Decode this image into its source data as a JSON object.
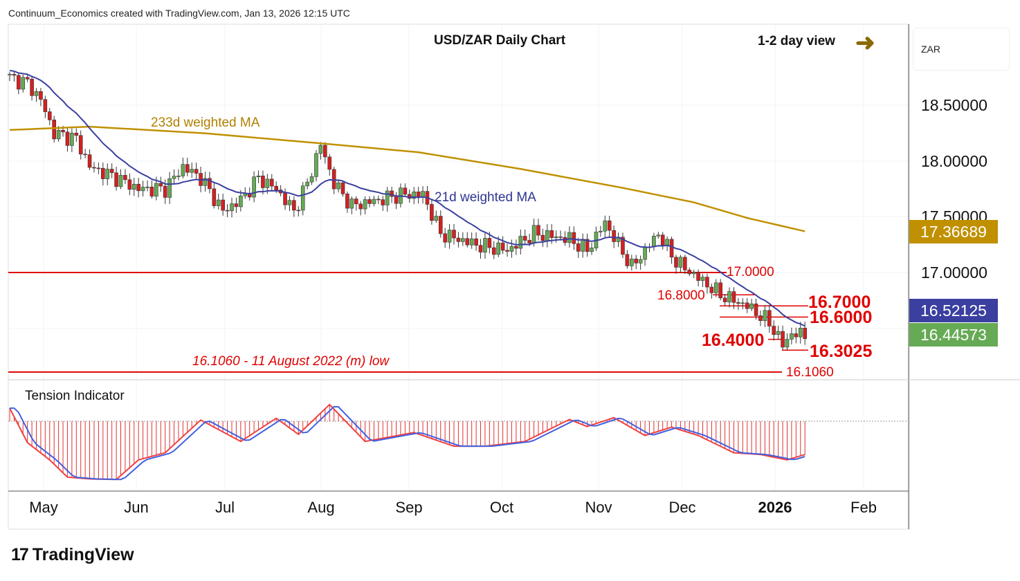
{
  "header": {
    "credit": "Continuum_Economics created with TradingView.com, Jan 13, 2026 12:15 UTC"
  },
  "chart_data": {
    "type": "candlestick",
    "title": "USD/ZAR Daily Chart",
    "view": "1-2 day view",
    "currency": "ZAR",
    "y_ticks": [
      "18.50000",
      "18.00000",
      "17.50000",
      "17.00000"
    ],
    "x_ticks": [
      "May",
      "Jun",
      "Jul",
      "Aug",
      "Sep",
      "Oct",
      "Nov",
      "Dec",
      "2026",
      "Feb"
    ],
    "price_anchors": [
      [
        0,
        18.75
      ],
      [
        4,
        18.7
      ],
      [
        7,
        18.55
      ],
      [
        10,
        18.25
      ],
      [
        15,
        18.2
      ],
      [
        18,
        17.95
      ],
      [
        24,
        17.85
      ],
      [
        29,
        17.75
      ],
      [
        35,
        17.75
      ],
      [
        39,
        17.95
      ],
      [
        43,
        17.85
      ],
      [
        48,
        17.55
      ],
      [
        52,
        17.65
      ],
      [
        56,
        17.85
      ],
      [
        60,
        17.75
      ],
      [
        64,
        17.55
      ],
      [
        67,
        17.8
      ],
      [
        70,
        18.15
      ],
      [
        73,
        17.8
      ],
      [
        77,
        17.6
      ],
      [
        83,
        17.65
      ],
      [
        88,
        17.7
      ],
      [
        93,
        17.7
      ],
      [
        97,
        17.35
      ],
      [
        105,
        17.25
      ],
      [
        112,
        17.2
      ],
      [
        118,
        17.35
      ],
      [
        126,
        17.3
      ],
      [
        130,
        17.2
      ],
      [
        134,
        17.45
      ],
      [
        140,
        17.05
      ],
      [
        146,
        17.35
      ],
      [
        150,
        17.1
      ],
      [
        155,
        16.95
      ],
      [
        160,
        16.8
      ],
      [
        166,
        16.7
      ],
      [
        171,
        16.55
      ],
      [
        174,
        16.35
      ],
      [
        176,
        16.45
      ],
      [
        179,
        16.44
      ]
    ],
    "ma233_anchors": [
      [
        0,
        18.28
      ],
      [
        18,
        18.31
      ],
      [
        44,
        18.25
      ],
      [
        70,
        18.16
      ],
      [
        92,
        18.08
      ],
      [
        115,
        17.93
      ],
      [
        138,
        17.76
      ],
      [
        154,
        17.63
      ],
      [
        166,
        17.49
      ],
      [
        179,
        17.37
      ]
    ],
    "ma233_label": "233d weighted MA",
    "ma21_label": "21d weighted MA",
    "last_values": {
      "ma233": "17.36689",
      "ma21": "16.52125",
      "close": "16.44573"
    },
    "levels": [
      {
        "value": 17.0,
        "label": "17.0000"
      },
      {
        "value": 16.8,
        "label": "16.8000"
      },
      {
        "value": 16.7,
        "label": "16.7000"
      },
      {
        "value": 16.6,
        "label": "16.6000"
      },
      {
        "value": 16.4,
        "label": "16.4000"
      },
      {
        "value": 16.3025,
        "label": "16.3025"
      },
      {
        "value": 16.106,
        "label": "16.1060"
      }
    ],
    "low_note": "16.1060 - 11 August 2022 (m) low",
    "indicator": {
      "name": "Tension Indicator",
      "anchors": [
        [
          0,
          0.22
        ],
        [
          4,
          -0.36
        ],
        [
          9,
          -0.65
        ],
        [
          13,
          -0.94
        ],
        [
          18,
          -0.97
        ],
        [
          24,
          -0.98
        ],
        [
          29,
          -0.65
        ],
        [
          35,
          -0.53
        ],
        [
          43,
          0.02
        ],
        [
          52,
          -0.34
        ],
        [
          60,
          0.05
        ],
        [
          65,
          -0.22
        ],
        [
          72,
          0.28
        ],
        [
          80,
          -0.34
        ],
        [
          91,
          -0.19
        ],
        [
          100,
          -0.42
        ],
        [
          107,
          -0.42
        ],
        [
          116,
          -0.34
        ],
        [
          126,
          0.03
        ],
        [
          130,
          -0.09
        ],
        [
          136,
          0.06
        ],
        [
          143,
          -0.24
        ],
        [
          149,
          -0.1
        ],
        [
          155,
          -0.24
        ],
        [
          163,
          -0.53
        ],
        [
          169,
          -0.56
        ],
        [
          175,
          -0.65
        ],
        [
          179,
          -0.56
        ]
      ]
    },
    "colors": {
      "up": "#66aa55",
      "down": "#d42020",
      "ma21": "#3a3fa0",
      "ma233": "#c09000",
      "level": "#e00000"
    }
  },
  "footer": {
    "brand": "TradingView"
  }
}
